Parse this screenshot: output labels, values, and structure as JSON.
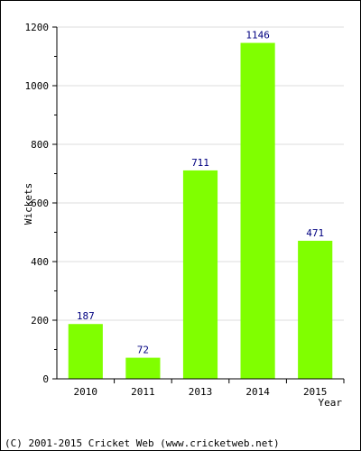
{
  "chart_data": {
    "type": "bar",
    "categories": [
      "2010",
      "2011",
      "2013",
      "2014",
      "2015"
    ],
    "values": [
      187,
      72,
      711,
      1146,
      471
    ],
    "data_labels": [
      "187",
      "72",
      "711",
      "1146",
      "471"
    ],
    "xlabel": "Year",
    "ylabel": "Wickets",
    "ylim": [
      0,
      1200
    ],
    "yticks": [
      0,
      200,
      400,
      600,
      800,
      1000,
      1200
    ],
    "ytick_labels": [
      "0",
      "200",
      "400",
      "600",
      "800",
      "1000",
      "1200"
    ],
    "grid": true,
    "bar_color": "#80ff00",
    "label_color": "#000080"
  },
  "footer": "(C) 2001-2015 Cricket Web (www.cricketweb.net)"
}
